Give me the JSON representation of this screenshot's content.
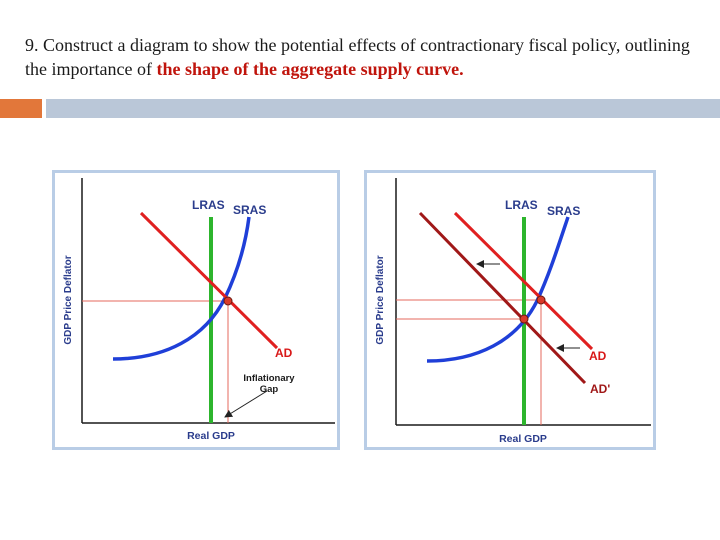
{
  "slide": {
    "title_plain": "9. Construct a diagram to show the potential effects of contractionary fiscal policy, outlining the importance of",
    "title_highlight": "the shape of the aggregate supply curve."
  },
  "colors": {
    "accent_orange": "#e2773a",
    "accent_blue": "#bac7d8",
    "highlight_text": "#c0140c",
    "panel_border": "#b9cde6",
    "lras": "#2db52d",
    "sras": "#1f3fd8",
    "ad": "#e02020",
    "ad_shifted": "#a01818",
    "guide": "#e66a5c",
    "label_blue": "#2a3c8c",
    "equilibrium": "#d93a2a"
  },
  "diagram_left": {
    "y_axis_label": "GDP Price Deflator",
    "x_axis_label": "Real GDP",
    "lras_label": "LRAS",
    "sras_label": "SRAS",
    "ad_label": "AD",
    "gap_label_line1": "Inflationary",
    "gap_label_line2": "Gap"
  },
  "diagram_right": {
    "y_axis_label": "GDP Price Deflator",
    "x_axis_label": "Real GDP",
    "lras_label": "LRAS",
    "sras_label": "SRAS",
    "ad_label": "AD",
    "ad_shifted_label": "AD'"
  }
}
